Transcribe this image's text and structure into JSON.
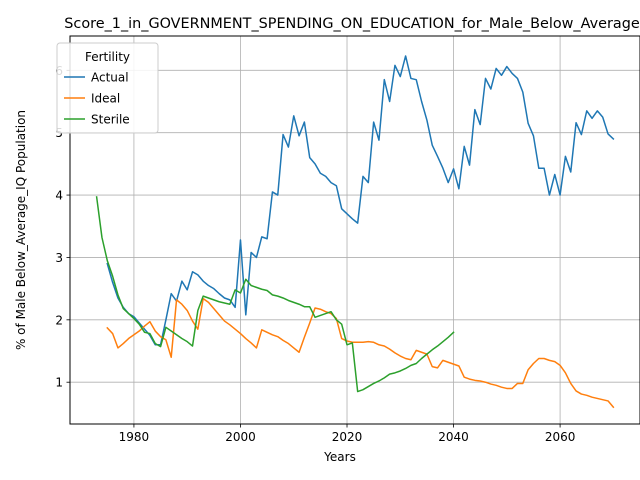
{
  "chart_data": {
    "type": "line",
    "title": "Score_1_in_GOVERNMENT_SPENDING_ON_EDUCATION_for_Male_Below_Average",
    "xlabel": "Years",
    "ylabel": "% of Male Below_Average_IQ Population",
    "xlim": [
      1968,
      2075
    ],
    "ylim": [
      0.33,
      6.55
    ],
    "xticks": [
      1980,
      2000,
      2020,
      2040,
      2060
    ],
    "yticks": [
      1,
      2,
      3,
      4,
      5,
      6
    ],
    "grid": true,
    "legend": {
      "title": "Fertility",
      "position": "top-left"
    },
    "series": [
      {
        "name": "Actual",
        "color": "#1f77b4",
        "points": [
          [
            1975,
            2.9
          ],
          [
            1976,
            2.6
          ],
          [
            1977,
            2.35
          ],
          [
            1978,
            2.2
          ],
          [
            1979,
            2.1
          ],
          [
            1980,
            2.05
          ],
          [
            1981,
            1.95
          ],
          [
            1982,
            1.85
          ],
          [
            1983,
            1.75
          ],
          [
            1984,
            1.6
          ],
          [
            1985,
            1.6
          ],
          [
            1986,
            2.0
          ],
          [
            1987,
            2.42
          ],
          [
            1988,
            2.3
          ],
          [
            1989,
            2.62
          ],
          [
            1990,
            2.48
          ],
          [
            1991,
            2.77
          ],
          [
            1992,
            2.72
          ],
          [
            1993,
            2.62
          ],
          [
            1994,
            2.55
          ],
          [
            1995,
            2.5
          ],
          [
            1996,
            2.42
          ],
          [
            1997,
            2.35
          ],
          [
            1998,
            2.32
          ],
          [
            1999,
            2.2
          ],
          [
            2000,
            3.28
          ],
          [
            2001,
            2.08
          ],
          [
            2002,
            3.08
          ],
          [
            2003,
            3.0
          ],
          [
            2004,
            3.33
          ],
          [
            2005,
            3.3
          ],
          [
            2006,
            4.05
          ],
          [
            2007,
            4.0
          ],
          [
            2008,
            4.97
          ],
          [
            2009,
            4.77
          ],
          [
            2010,
            5.27
          ],
          [
            2011,
            4.95
          ],
          [
            2012,
            5.17
          ],
          [
            2013,
            4.6
          ],
          [
            2014,
            4.5
          ],
          [
            2015,
            4.35
          ],
          [
            2016,
            4.3
          ],
          [
            2017,
            4.2
          ],
          [
            2018,
            4.15
          ],
          [
            2019,
            3.78
          ],
          [
            2020,
            3.7
          ],
          [
            2021,
            3.62
          ],
          [
            2022,
            3.55
          ],
          [
            2023,
            4.3
          ],
          [
            2024,
            4.2
          ],
          [
            2025,
            5.17
          ],
          [
            2026,
            4.88
          ],
          [
            2027,
            5.85
          ],
          [
            2028,
            5.5
          ],
          [
            2029,
            6.08
          ],
          [
            2030,
            5.9
          ],
          [
            2031,
            6.23
          ],
          [
            2032,
            5.87
          ],
          [
            2033,
            5.85
          ],
          [
            2034,
            5.5
          ],
          [
            2035,
            5.2
          ],
          [
            2036,
            4.8
          ],
          [
            2037,
            4.62
          ],
          [
            2038,
            4.43
          ],
          [
            2039,
            4.2
          ],
          [
            2040,
            4.42
          ],
          [
            2041,
            4.1
          ],
          [
            2042,
            4.78
          ],
          [
            2043,
            4.48
          ],
          [
            2044,
            5.37
          ],
          [
            2045,
            5.13
          ],
          [
            2046,
            5.87
          ],
          [
            2047,
            5.7
          ],
          [
            2048,
            6.03
          ],
          [
            2049,
            5.92
          ],
          [
            2050,
            6.06
          ],
          [
            2051,
            5.95
          ],
          [
            2052,
            5.87
          ],
          [
            2053,
            5.65
          ],
          [
            2054,
            5.15
          ],
          [
            2055,
            4.95
          ],
          [
            2056,
            4.43
          ],
          [
            2057,
            4.43
          ],
          [
            2058,
            4.0
          ],
          [
            2059,
            4.33
          ],
          [
            2060,
            4.0
          ],
          [
            2061,
            4.62
          ],
          [
            2062,
            4.37
          ],
          [
            2063,
            5.16
          ],
          [
            2064,
            4.97
          ],
          [
            2065,
            5.35
          ],
          [
            2066,
            5.23
          ],
          [
            2067,
            5.35
          ],
          [
            2068,
            5.25
          ],
          [
            2069,
            4.98
          ],
          [
            2070,
            4.9
          ]
        ]
      },
      {
        "name": "Ideal",
        "color": "#ff7f0e",
        "points": [
          [
            1975,
            1.87
          ],
          [
            1976,
            1.78
          ],
          [
            1977,
            1.55
          ],
          [
            1978,
            1.62
          ],
          [
            1979,
            1.7
          ],
          [
            1980,
            1.76
          ],
          [
            1981,
            1.82
          ],
          [
            1982,
            1.9
          ],
          [
            1983,
            1.97
          ],
          [
            1984,
            1.82
          ],
          [
            1985,
            1.73
          ],
          [
            1986,
            1.68
          ],
          [
            1987,
            1.4
          ],
          [
            1988,
            2.32
          ],
          [
            1989,
            2.25
          ],
          [
            1990,
            2.15
          ],
          [
            1991,
            1.98
          ],
          [
            1992,
            1.85
          ],
          [
            1993,
            2.34
          ],
          [
            1994,
            2.28
          ],
          [
            1995,
            2.18
          ],
          [
            1996,
            2.08
          ],
          [
            1997,
            1.98
          ],
          [
            1998,
            1.92
          ],
          [
            1999,
            1.85
          ],
          [
            2000,
            1.78
          ],
          [
            2001,
            1.7
          ],
          [
            2002,
            1.63
          ],
          [
            2003,
            1.55
          ],
          [
            2004,
            1.84
          ],
          [
            2005,
            1.8
          ],
          [
            2006,
            1.76
          ],
          [
            2007,
            1.73
          ],
          [
            2008,
            1.67
          ],
          [
            2009,
            1.62
          ],
          [
            2010,
            1.55
          ],
          [
            2011,
            1.48
          ],
          [
            2012,
            1.72
          ],
          [
            2013,
            1.95
          ],
          [
            2014,
            2.19
          ],
          [
            2015,
            2.17
          ],
          [
            2016,
            2.13
          ],
          [
            2017,
            2.1
          ],
          [
            2018,
            2.02
          ],
          [
            2019,
            1.7
          ],
          [
            2020,
            1.66
          ],
          [
            2021,
            1.64
          ],
          [
            2022,
            1.64
          ],
          [
            2023,
            1.64
          ],
          [
            2024,
            1.65
          ],
          [
            2025,
            1.64
          ],
          [
            2026,
            1.6
          ],
          [
            2027,
            1.58
          ],
          [
            2028,
            1.53
          ],
          [
            2029,
            1.47
          ],
          [
            2030,
            1.42
          ],
          [
            2031,
            1.38
          ],
          [
            2032,
            1.36
          ],
          [
            2033,
            1.51
          ],
          [
            2034,
            1.48
          ],
          [
            2035,
            1.45
          ],
          [
            2036,
            1.25
          ],
          [
            2037,
            1.23
          ],
          [
            2038,
            1.35
          ],
          [
            2039,
            1.32
          ],
          [
            2040,
            1.29
          ],
          [
            2041,
            1.26
          ],
          [
            2042,
            1.08
          ],
          [
            2043,
            1.05
          ],
          [
            2044,
            1.03
          ],
          [
            2045,
            1.02
          ],
          [
            2046,
            1.0
          ],
          [
            2047,
            0.97
          ],
          [
            2048,
            0.95
          ],
          [
            2049,
            0.92
          ],
          [
            2050,
            0.9
          ],
          [
            2051,
            0.9
          ],
          [
            2052,
            0.98
          ],
          [
            2053,
            0.98
          ],
          [
            2054,
            1.2
          ],
          [
            2055,
            1.3
          ],
          [
            2056,
            1.38
          ],
          [
            2057,
            1.38
          ],
          [
            2058,
            1.35
          ],
          [
            2059,
            1.33
          ],
          [
            2060,
            1.27
          ],
          [
            2061,
            1.15
          ],
          [
            2062,
            0.98
          ],
          [
            2063,
            0.86
          ],
          [
            2064,
            0.81
          ],
          [
            2065,
            0.79
          ],
          [
            2066,
            0.76
          ],
          [
            2067,
            0.74
          ],
          [
            2068,
            0.72
          ],
          [
            2069,
            0.7
          ],
          [
            2070,
            0.6
          ]
        ]
      },
      {
        "name": "Sterile",
        "color": "#2ca02c",
        "points": [
          [
            1973,
            3.97
          ],
          [
            1974,
            3.32
          ],
          [
            1975,
            2.95
          ],
          [
            1976,
            2.7
          ],
          [
            1977,
            2.4
          ],
          [
            1978,
            2.18
          ],
          [
            1979,
            2.1
          ],
          [
            1980,
            2.02
          ],
          [
            1981,
            1.93
          ],
          [
            1982,
            1.8
          ],
          [
            1983,
            1.78
          ],
          [
            1984,
            1.62
          ],
          [
            1985,
            1.57
          ],
          [
            1986,
            1.88
          ],
          [
            1987,
            1.82
          ],
          [
            1988,
            1.76
          ],
          [
            1989,
            1.7
          ],
          [
            1990,
            1.65
          ],
          [
            1991,
            1.58
          ],
          [
            1992,
            2.15
          ],
          [
            1993,
            2.38
          ],
          [
            1994,
            2.35
          ],
          [
            1995,
            2.32
          ],
          [
            1996,
            2.29
          ],
          [
            1997,
            2.27
          ],
          [
            1998,
            2.25
          ],
          [
            1999,
            2.48
          ],
          [
            2000,
            2.43
          ],
          [
            2001,
            2.65
          ],
          [
            2002,
            2.55
          ],
          [
            2003,
            2.52
          ],
          [
            2004,
            2.49
          ],
          [
            2005,
            2.47
          ],
          [
            2006,
            2.4
          ],
          [
            2007,
            2.38
          ],
          [
            2008,
            2.35
          ],
          [
            2009,
            2.31
          ],
          [
            2010,
            2.28
          ],
          [
            2011,
            2.25
          ],
          [
            2012,
            2.21
          ],
          [
            2013,
            2.21
          ],
          [
            2014,
            2.04
          ],
          [
            2015,
            2.07
          ],
          [
            2016,
            2.1
          ],
          [
            2017,
            2.13
          ],
          [
            2018,
            2.0
          ],
          [
            2019,
            1.93
          ],
          [
            2020,
            1.6
          ],
          [
            2021,
            1.63
          ],
          [
            2022,
            0.85
          ],
          [
            2023,
            0.88
          ],
          [
            2024,
            0.93
          ],
          [
            2025,
            0.98
          ],
          [
            2026,
            1.02
          ],
          [
            2027,
            1.07
          ],
          [
            2028,
            1.13
          ],
          [
            2029,
            1.15
          ],
          [
            2030,
            1.18
          ],
          [
            2031,
            1.22
          ],
          [
            2032,
            1.27
          ],
          [
            2033,
            1.3
          ],
          [
            2034,
            1.38
          ],
          [
            2035,
            1.45
          ],
          [
            2036,
            1.52
          ],
          [
            2037,
            1.58
          ],
          [
            2038,
            1.65
          ],
          [
            2039,
            1.72
          ],
          [
            2040,
            1.8
          ]
        ]
      }
    ]
  }
}
